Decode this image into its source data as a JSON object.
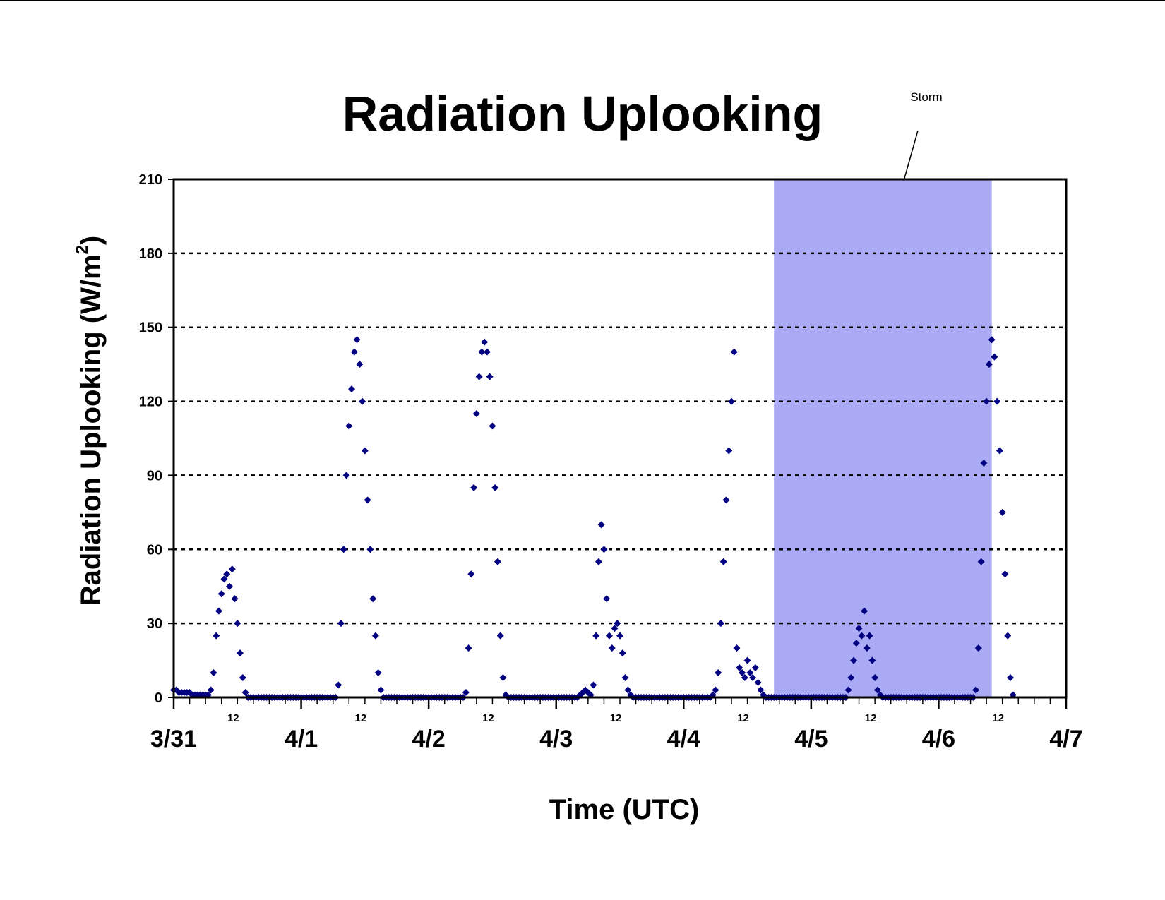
{
  "chart_data": {
    "type": "scatter",
    "title": "Radiation Uplooking",
    "xlabel": "Time (UTC)",
    "ylabel_text": "Radiation Uplooking (W/m",
    "ylabel_sup": "2",
    "ylabel_close": ")",
    "ylim": [
      0,
      210
    ],
    "yticks": [
      0,
      30,
      60,
      90,
      120,
      150,
      180,
      210
    ],
    "grid": "horizontal dotted",
    "x_range_days": [
      "3/31",
      "4/7"
    ],
    "date_labels": [
      "3/31",
      "4/1",
      "4/2",
      "4/3",
      "4/4",
      "4/5",
      "4/6",
      "4/7"
    ],
    "noon_label": "12",
    "shaded_region": {
      "start": "4/4 17:00",
      "end": "4/6 10:00",
      "color": "#aaaaf5",
      "label": "Storm"
    },
    "marker_color": "#000080",
    "marker": "diamond",
    "series": [
      {
        "x_day_start": "3/31",
        "y": [
          3,
          3,
          2,
          2,
          2,
          2,
          2,
          1,
          1,
          1,
          1,
          1,
          1,
          1,
          3,
          10,
          25,
          35,
          42,
          48,
          50,
          45,
          52,
          40,
          30,
          18,
          8,
          2,
          0,
          0,
          0,
          0,
          0,
          0,
          0,
          0,
          0,
          0,
          0,
          0,
          0,
          0,
          0,
          0,
          0,
          0,
          0,
          0,
          0,
          0,
          0,
          0,
          0,
          0,
          0,
          0,
          0,
          0,
          0,
          0,
          0,
          0,
          5,
          30,
          60,
          90,
          110,
          125,
          140,
          145,
          135,
          120,
          100,
          80,
          60,
          40,
          25,
          10,
          3,
          0,
          0,
          0,
          0,
          0,
          0,
          0,
          0,
          0,
          0,
          0,
          0,
          0,
          0,
          0,
          0,
          0,
          0,
          0,
          0,
          0,
          0,
          0,
          0,
          0,
          0,
          0,
          0,
          0,
          0,
          0,
          2,
          20,
          50,
          85,
          115,
          130,
          140,
          144,
          140,
          130,
          110,
          85,
          55,
          25,
          8,
          1,
          0,
          0,
          0,
          0,
          0,
          0,
          0,
          0,
          0,
          0,
          0,
          0,
          0,
          0,
          0,
          0,
          0,
          0,
          0,
          0,
          0,
          0,
          0,
          0,
          0,
          0,
          0,
          1,
          2,
          3,
          2,
          1,
          5,
          25,
          55,
          70,
          60,
          40,
          25,
          20,
          28,
          30,
          25,
          18,
          8,
          3,
          1,
          0,
          0,
          0,
          0,
          0,
          0,
          0,
          0,
          0,
          0,
          0,
          0,
          0,
          0,
          0,
          0,
          0,
          0,
          0,
          0,
          0,
          0,
          0,
          0,
          0,
          0,
          0,
          0,
          0,
          0,
          1,
          3,
          10,
          30,
          55,
          80,
          100,
          120,
          140,
          20,
          12,
          10,
          8,
          15,
          10,
          8,
          12,
          6,
          3,
          1,
          0,
          0,
          0,
          0,
          0,
          0,
          0,
          0,
          0,
          0,
          0,
          0,
          0,
          0,
          0,
          0,
          0,
          0,
          0,
          0,
          0,
          0,
          0,
          0,
          0,
          0,
          0,
          0,
          0,
          0,
          0,
          3,
          8,
          15,
          22,
          28,
          25,
          35,
          20,
          25,
          15,
          8,
          3,
          1,
          0,
          0,
          0,
          0,
          0,
          0,
          0,
          0,
          0,
          0,
          0,
          0,
          0,
          0,
          0,
          0,
          0,
          0,
          0,
          0,
          0,
          0,
          0,
          0,
          0,
          0,
          0,
          0,
          0,
          0,
          0,
          0,
          0,
          0,
          0,
          3,
          20,
          55,
          95,
          120,
          135,
          145,
          138,
          120,
          100,
          75,
          50,
          25,
          8,
          1
        ],
        "x_step_hours": 0.5
      }
    ]
  }
}
